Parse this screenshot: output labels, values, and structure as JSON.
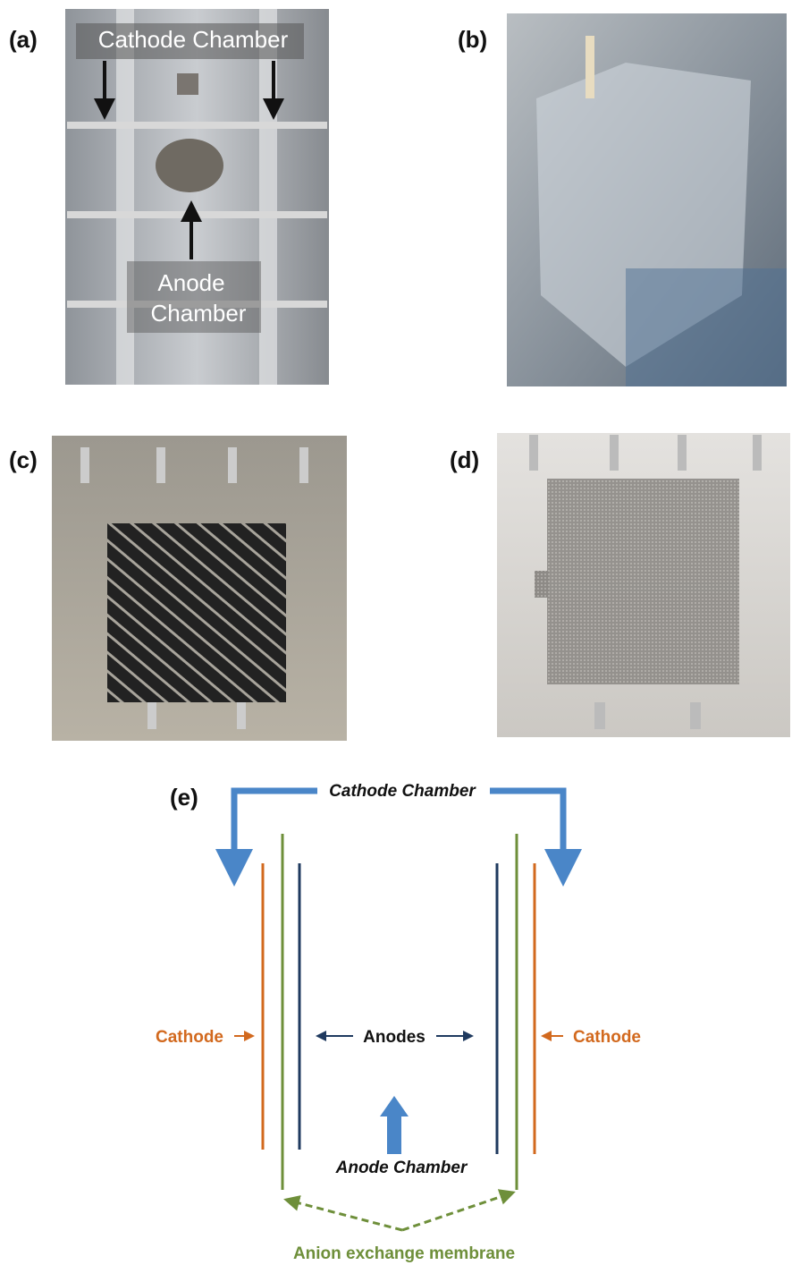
{
  "panels": [
    {
      "label": "(a)",
      "annotations": [
        "Cathode Chamber",
        "Anode",
        "Chamber"
      ]
    },
    {
      "label": "(b)"
    },
    {
      "label": "(c)"
    },
    {
      "label": "(d)"
    }
  ],
  "diagram": {
    "label": "(e)",
    "top_label": "Cathode Chamber",
    "left_label": "Cathode",
    "center_label": "Anodes",
    "right_label": "Cathode",
    "bottom_label": "Anode Chamber",
    "membrane_label": "Anion exchange membrane"
  }
}
